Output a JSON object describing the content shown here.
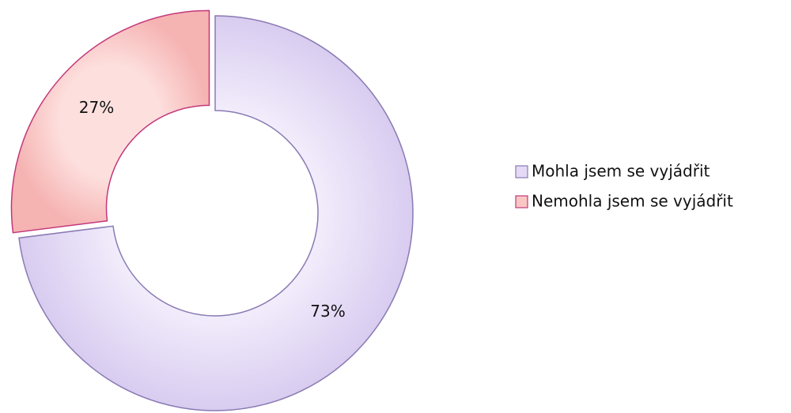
{
  "chart_data": {
    "type": "donut",
    "categories": [
      "Mohla jsem se vyjádřit",
      "Nemohla jsem se vyjádřit"
    ],
    "values": [
      73,
      27
    ],
    "value_labels": [
      "73%",
      "27%"
    ],
    "colors": [
      "#e4daf6",
      "#f9c6c4"
    ],
    "stroke_colors": [
      "#8a7ab3",
      "#c2377a"
    ],
    "legend": "right"
  }
}
